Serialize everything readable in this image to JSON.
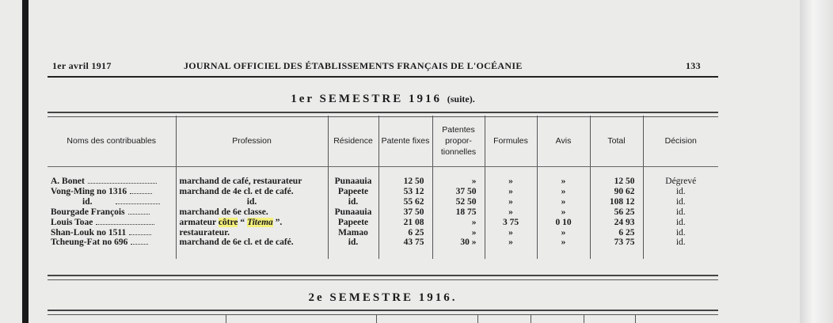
{
  "header": {
    "date": "1er avril 1917",
    "journal": "JOURNAL OFFICIEL DES ÉTABLISSEMENTS FRANÇAIS DE L'OCÉANIE",
    "page": "133"
  },
  "section1": {
    "title": "1er SEMESTRE 1916",
    "suffix": "(suite)."
  },
  "table": {
    "columns": [
      "Noms des contribuables",
      "Profession",
      "Résidence",
      "Patente fixes",
      "Patentes propor-tionnelles",
      "Formules",
      "Avis",
      "Total",
      "Décision"
    ],
    "rows": [
      {
        "name": "A. Bonet",
        "profession": "marchand de café, restaurateur",
        "residence": "Punaauia",
        "fixe": "12 50",
        "prop": "»",
        "formules": "»",
        "avis": "»",
        "total": "12 50",
        "decision": "Dégrevé"
      },
      {
        "name": "Vong-Ming no 1316",
        "profession": "marchand de 4e cl. et de café.",
        "residence": "Papeete",
        "fixe": "53 12",
        "prop": "37 50",
        "formules": "»",
        "avis": "»",
        "total": "90 62",
        "decision": "id."
      },
      {
        "name": "id.",
        "profession": "id.",
        "residence": "id.",
        "fixe": "55 62",
        "prop": "52 50",
        "formules": "»",
        "avis": "»",
        "total": "108 12",
        "decision": "id."
      },
      {
        "name": "Bourgade François",
        "profession": "marchand de 6e classe.",
        "residence": "Punaauia",
        "fixe": "37 50",
        "prop": "18 75",
        "formules": "»",
        "avis": "»",
        "total": "56 25",
        "decision": "id."
      },
      {
        "name": "Louis Toae",
        "profession_pre": "armateur",
        "profession_hl": "côtre",
        "profession_q1": "“",
        "profession_ship": "Titema",
        "profession_q2": "”.",
        "residence": "Papeete",
        "fixe": "21 08",
        "prop": "»",
        "formules": "3 75",
        "avis": "0 10",
        "total": "24 93",
        "decision": "id."
      },
      {
        "name": "Shan-Louk no 1511",
        "profession": "restaurateur.",
        "residence": "Mamao",
        "fixe": "6 25",
        "prop": "»",
        "formules": "»",
        "avis": "»",
        "total": "6 25",
        "decision": "id."
      },
      {
        "name": "Tcheung-Fat no 696",
        "profession": "marchand de 6e cl. et de café.",
        "residence": "id.",
        "fixe": "43 75",
        "prop": "30 »",
        "formules": "»",
        "avis": "»",
        "total": "73 75",
        "decision": "id."
      }
    ]
  },
  "section2": {
    "title": "2e SEMESTRE 1916."
  },
  "colors": {
    "paper": "#ebebea",
    "ink": "#1c1c1c",
    "highlight": "#f4f07a"
  }
}
